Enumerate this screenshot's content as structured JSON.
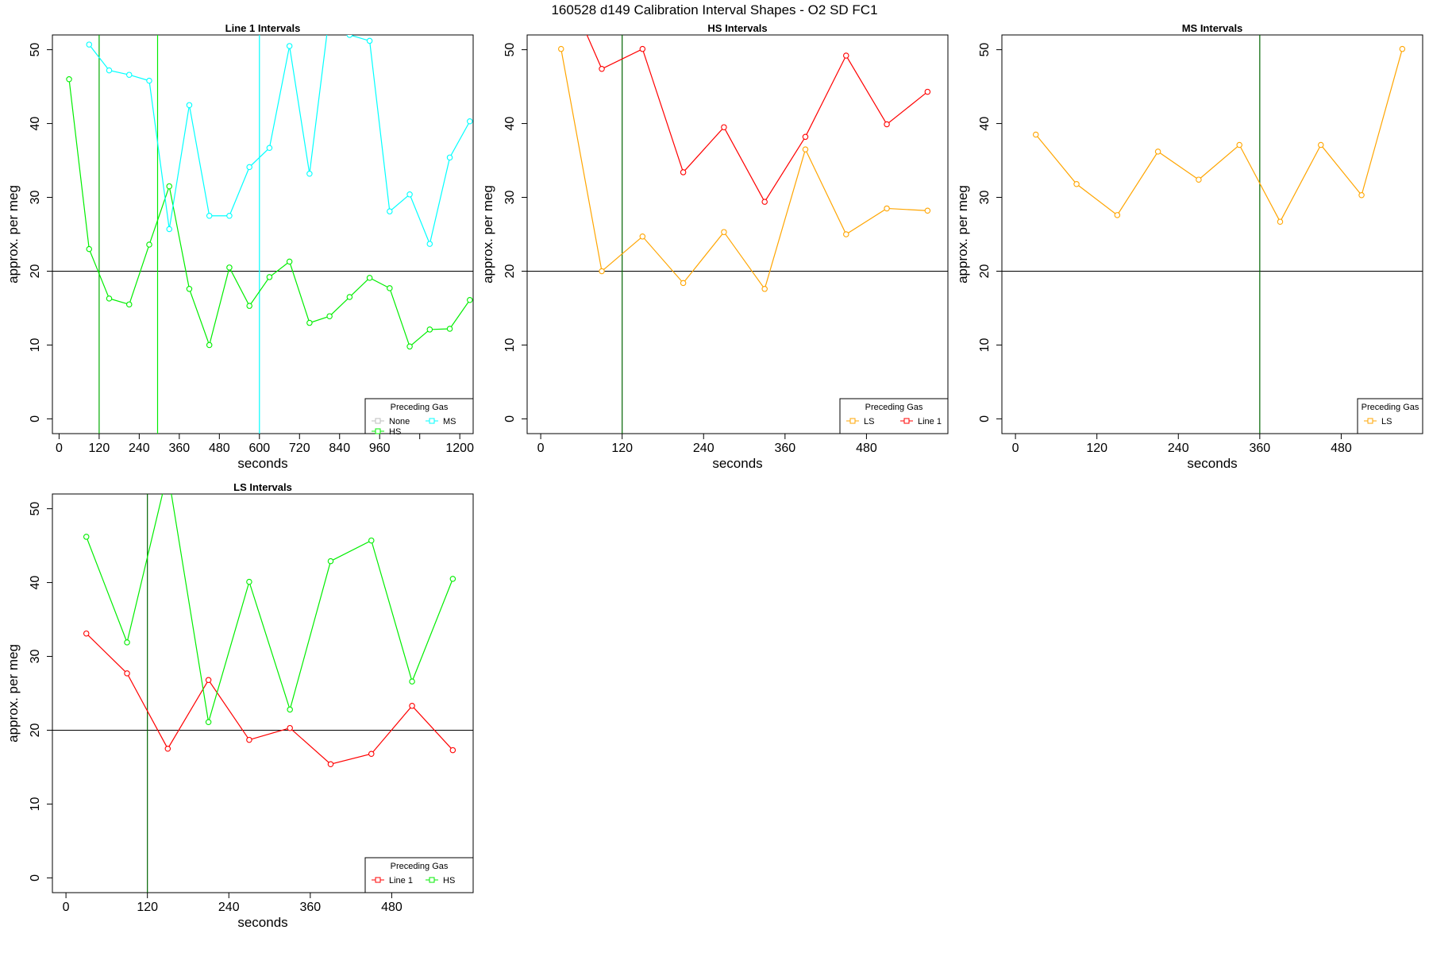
{
  "figure": {
    "title": "160528   d149   Calibration Interval Shapes - O2 SD FC1"
  },
  "chart_data": [
    {
      "type": "line",
      "title": "Line 1 Intervals",
      "xlabel": "seconds",
      "ylabel": "approx. per meg",
      "xlim": [
        -20,
        1240
      ],
      "ylim": [
        -2,
        52
      ],
      "x_ticks": [
        0,
        120,
        240,
        360,
        480,
        600,
        720,
        840,
        960,
        1080,
        1200
      ],
      "x_tick_labels": [
        "0",
        "120",
        "240",
        "360",
        "480",
        "600",
        "720",
        "840",
        "960",
        "",
        "1200"
      ],
      "y_ticks": [
        0,
        10,
        20,
        30,
        40,
        50
      ],
      "hlines": [
        {
          "y": 20,
          "color": "#000000"
        }
      ],
      "vlines": [
        {
          "x": 120,
          "color": "#00aa00"
        },
        {
          "x": 295,
          "color": "#00ee00"
        },
        {
          "x": 600,
          "color": "#00ffff"
        }
      ],
      "series": [
        {
          "name": "HS",
          "color": "#00ee00",
          "x": [
            30,
            90,
            150,
            210,
            270,
            330,
            390,
            450,
            510,
            570,
            630,
            690,
            750,
            810,
            870,
            930,
            990,
            1050,
            1110,
            1170,
            1230
          ],
          "y": [
            46,
            23,
            16.3,
            15.5,
            23.6,
            31.5,
            17.6,
            10,
            20.5,
            15.3,
            19.2,
            21.3,
            13,
            13.9,
            16.5,
            19.1,
            17.7,
            9.8,
            12.1,
            12.2,
            16.1
          ]
        },
        {
          "name": "MS",
          "color": "#00ffff",
          "x": [
            90,
            150,
            210,
            270,
            330,
            390,
            450,
            510,
            570,
            630,
            690,
            750,
            810,
            870,
            930,
            990,
            1050,
            1110,
            1170,
            1230
          ],
          "y": [
            50.7,
            47.2,
            46.6,
            45.8,
            25.7,
            42.5,
            27.5,
            27.5,
            34.1,
            36.7,
            50.5,
            33.2,
            55,
            52,
            51.2,
            28.1,
            30.4,
            23.7,
            35.4,
            40.3
          ]
        }
      ],
      "legend": {
        "title": "Preceding Gas",
        "placement": "bottom-right",
        "ncol": 2,
        "entries": [
          {
            "label": "None",
            "color": "#bebebe"
          },
          {
            "label": "MS",
            "color": "#00ffff"
          },
          {
            "label": "HS",
            "color": "#00ee00"
          }
        ]
      }
    },
    {
      "type": "line",
      "title": "HS Intervals",
      "xlabel": "seconds",
      "ylabel": "approx. per meg",
      "xlim": [
        -20,
        600
      ],
      "ylim": [
        -2,
        52
      ],
      "x_ticks": [
        0,
        120,
        240,
        360,
        480
      ],
      "x_tick_labels": [
        "0",
        "120",
        "240",
        "360",
        "480"
      ],
      "y_ticks": [
        0,
        10,
        20,
        30,
        40,
        50
      ],
      "hlines": [
        {
          "y": 20,
          "color": "#000000"
        }
      ],
      "vlines": [
        {
          "x": 120,
          "color": "#006400"
        }
      ],
      "series": [
        {
          "name": "LS",
          "color": "#ffa500",
          "x": [
            30,
            90,
            150,
            210,
            270,
            330,
            390,
            450,
            510,
            570
          ],
          "y": [
            50.1,
            20,
            24.7,
            18.4,
            25.3,
            17.6,
            36.5,
            25,
            28.5,
            28.2
          ]
        },
        {
          "name": "Line 1",
          "color": "#ff0000",
          "x": [
            30,
            90,
            150,
            210,
            270,
            330,
            390,
            450,
            510,
            570
          ],
          "y": [
            60,
            47.4,
            50.1,
            33.4,
            39.5,
            29.4,
            38.2,
            49.2,
            39.9,
            44.3
          ]
        }
      ],
      "legend": {
        "title": "Preceding Gas",
        "placement": "bottom-right",
        "ncol": 2,
        "entries": [
          {
            "label": "LS",
            "color": "#ffa500"
          },
          {
            "label": "Line 1",
            "color": "#ff0000"
          }
        ]
      }
    },
    {
      "type": "line",
      "title": "MS Intervals",
      "xlabel": "seconds",
      "ylabel": "approx. per meg",
      "xlim": [
        -20,
        600
      ],
      "ylim": [
        -2,
        52
      ],
      "x_ticks": [
        0,
        120,
        240,
        360,
        480
      ],
      "x_tick_labels": [
        "0",
        "120",
        "240",
        "360",
        "480"
      ],
      "y_ticks": [
        0,
        10,
        20,
        30,
        40,
        50
      ],
      "hlines": [
        {
          "y": 20,
          "color": "#000000"
        }
      ],
      "vlines": [
        {
          "x": 360,
          "color": "#006400"
        }
      ],
      "series": [
        {
          "name": "LS",
          "color": "#ffa500",
          "x": [
            30,
            90,
            150,
            210,
            270,
            330,
            390,
            450,
            510,
            570
          ],
          "y": [
            38.5,
            31.8,
            27.6,
            36.2,
            32.4,
            37.1,
            26.7,
            37.1,
            30.3,
            50.1
          ]
        }
      ],
      "legend": {
        "title": "Preceding Gas",
        "placement": "bottom-right",
        "ncol": 1,
        "entries": [
          {
            "label": "LS",
            "color": "#ffa500"
          }
        ]
      }
    },
    {
      "type": "line",
      "title": "LS Intervals",
      "xlabel": "seconds",
      "ylabel": "approx. per meg",
      "xlim": [
        -20,
        600
      ],
      "ylim": [
        -2,
        52
      ],
      "x_ticks": [
        0,
        120,
        240,
        360,
        480
      ],
      "x_tick_labels": [
        "0",
        "120",
        "240",
        "360",
        "480"
      ],
      "y_ticks": [
        0,
        10,
        20,
        30,
        40,
        50
      ],
      "hlines": [
        {
          "y": 20,
          "color": "#000000"
        }
      ],
      "vlines": [
        {
          "x": 120,
          "color": "#006400"
        }
      ],
      "series": [
        {
          "name": "Line 1",
          "color": "#ff0000",
          "x": [
            30,
            90,
            150,
            210,
            270,
            330,
            390,
            450,
            510,
            570
          ],
          "y": [
            33.1,
            27.7,
            17.5,
            26.8,
            18.7,
            20.3,
            15.4,
            16.8,
            23.3,
            17.3
          ]
        },
        {
          "name": "HS",
          "color": "#00ee00",
          "x": [
            30,
            90,
            150,
            210,
            270,
            330,
            390,
            450,
            510,
            570
          ],
          "y": [
            46.2,
            31.9,
            55,
            21.1,
            40.1,
            22.8,
            42.9,
            45.7,
            26.6,
            40.5
          ]
        }
      ],
      "legend": {
        "title": "Preceding Gas",
        "placement": "bottom-right",
        "ncol": 2,
        "entries": [
          {
            "label": "Line 1",
            "color": "#ff0000"
          },
          {
            "label": "HS",
            "color": "#00ee00"
          }
        ]
      }
    }
  ]
}
